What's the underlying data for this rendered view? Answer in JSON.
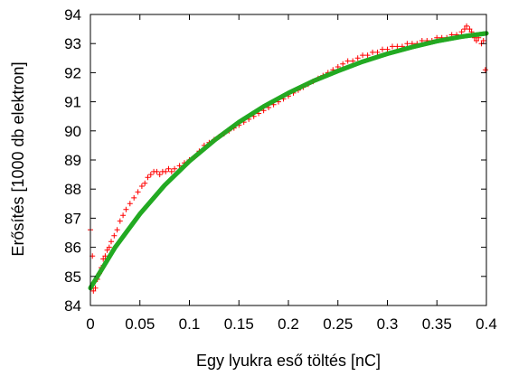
{
  "chart_data": {
    "type": "scatter",
    "title": "",
    "xlabel": "Egy lyukra eső töltés [nC]",
    "ylabel": "Erősítés [1000 db elektron]",
    "xlim": [
      0,
      0.4
    ],
    "ylim": [
      84,
      94
    ],
    "xticks": [
      "0",
      "0.05",
      "0.1",
      "0.15",
      "0.2",
      "0.25",
      "0.3",
      "0.35",
      "0.4"
    ],
    "yticks": [
      "84",
      "85",
      "86",
      "87",
      "88",
      "89",
      "90",
      "91",
      "92",
      "93",
      "94"
    ],
    "grid": false,
    "legend": "none",
    "series": [
      {
        "kind": "scatter",
        "marker": "+",
        "color": "#ff0000",
        "x": [
          0.0,
          0.002,
          0.003,
          0.005,
          0.007,
          0.009,
          0.011,
          0.013,
          0.015,
          0.017,
          0.019,
          0.021,
          0.024,
          0.027,
          0.03,
          0.033,
          0.036,
          0.04,
          0.044,
          0.048,
          0.052,
          0.055,
          0.058,
          0.061,
          0.064,
          0.067,
          0.07,
          0.073,
          0.076,
          0.079,
          0.082,
          0.085,
          0.09,
          0.095,
          0.1,
          0.105,
          0.11,
          0.115,
          0.12,
          0.125,
          0.13,
          0.135,
          0.14,
          0.145,
          0.15,
          0.155,
          0.16,
          0.165,
          0.17,
          0.175,
          0.18,
          0.185,
          0.19,
          0.195,
          0.2,
          0.205,
          0.21,
          0.215,
          0.22,
          0.225,
          0.23,
          0.235,
          0.24,
          0.245,
          0.25,
          0.255,
          0.26,
          0.265,
          0.27,
          0.275,
          0.28,
          0.285,
          0.29,
          0.295,
          0.3,
          0.305,
          0.31,
          0.315,
          0.32,
          0.325,
          0.33,
          0.335,
          0.34,
          0.345,
          0.35,
          0.355,
          0.36,
          0.365,
          0.37,
          0.375,
          0.378,
          0.38,
          0.383,
          0.385,
          0.388,
          0.39,
          0.392,
          0.395,
          0.397,
          0.399
        ],
        "y": [
          86.6,
          85.7,
          84.5,
          84.6,
          84.9,
          85.1,
          85.3,
          85.6,
          85.7,
          85.9,
          86.0,
          86.2,
          86.4,
          86.6,
          86.9,
          87.1,
          87.3,
          87.5,
          87.7,
          87.9,
          88.1,
          88.2,
          88.4,
          88.5,
          88.6,
          88.6,
          88.5,
          88.6,
          88.6,
          88.7,
          88.6,
          88.7,
          88.8,
          88.9,
          89.0,
          89.1,
          89.3,
          89.5,
          89.6,
          89.7,
          89.8,
          89.9,
          90.0,
          90.1,
          90.2,
          90.3,
          90.4,
          90.5,
          90.6,
          90.7,
          90.8,
          90.9,
          91.0,
          91.1,
          91.2,
          91.3,
          91.4,
          91.5,
          91.6,
          91.7,
          91.8,
          91.9,
          92.0,
          92.1,
          92.2,
          92.3,
          92.4,
          92.4,
          92.5,
          92.6,
          92.6,
          92.7,
          92.7,
          92.8,
          92.8,
          92.9,
          92.9,
          92.9,
          93.0,
          93.0,
          93.0,
          93.1,
          93.1,
          93.1,
          93.2,
          93.2,
          93.2,
          93.3,
          93.3,
          93.4,
          93.5,
          93.6,
          93.5,
          93.4,
          93.2,
          93.1,
          93.2,
          93.0,
          93.1,
          92.1
        ]
      },
      {
        "kind": "line",
        "color": "#22aa22",
        "x": [
          0.0,
          0.025,
          0.05,
          0.075,
          0.1,
          0.125,
          0.15,
          0.175,
          0.2,
          0.225,
          0.25,
          0.275,
          0.3,
          0.325,
          0.35,
          0.375,
          0.4
        ],
        "y": [
          84.6,
          86.0,
          87.15,
          88.13,
          88.96,
          89.67,
          90.3,
          90.84,
          91.3,
          91.71,
          92.06,
          92.38,
          92.65,
          92.88,
          93.08,
          93.24,
          93.35
        ]
      }
    ]
  }
}
